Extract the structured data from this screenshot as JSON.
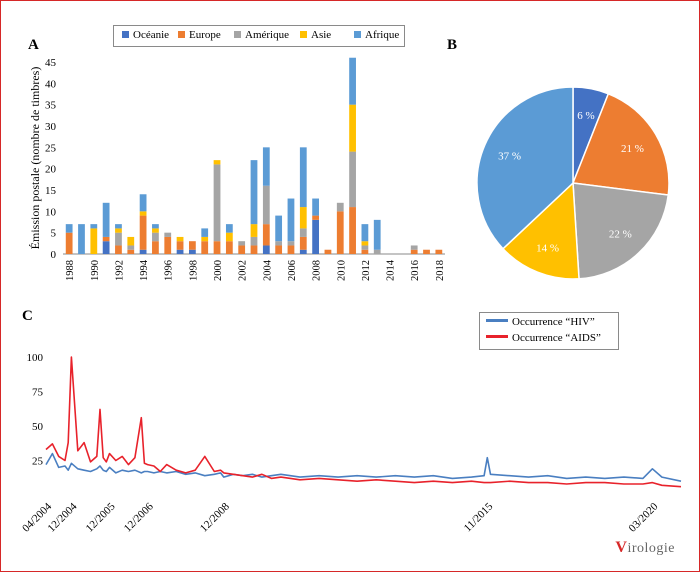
{
  "panels": {
    "a": "A",
    "b": "B",
    "c": "C"
  },
  "logo": {
    "v": "V",
    "rest": "irologie"
  },
  "colors": {
    "oceanie": "#4472c4",
    "europe": "#ed7d31",
    "amerique": "#a5a5a5",
    "asie": "#ffc000",
    "afrique": "#5b9bd5",
    "hiv": "#4a7fc1",
    "aids": "#e8222b",
    "frame": "#d62828"
  },
  "chart_data": [
    {
      "type": "bar",
      "stacked": true,
      "title": "",
      "ylabel": "Émission postale (nombre de timbres)",
      "xlabel": "",
      "ylim": [
        0,
        45
      ],
      "yticks": [
        "0",
        "5",
        "10",
        "15",
        "20",
        "25",
        "30",
        "35",
        "40",
        "45"
      ],
      "xtick_labels": [
        "1988",
        "1990",
        "1992",
        "1994",
        "1996",
        "1998",
        "2000",
        "2002",
        "2004",
        "2006",
        "2008",
        "2010",
        "2012",
        "2014",
        "2016",
        "2018"
      ],
      "categories": [
        "1988",
        "1989",
        "1990",
        "1991",
        "1992",
        "1993",
        "1994",
        "1995",
        "1996",
        "1997",
        "1998",
        "1999",
        "2000",
        "2001",
        "2002",
        "2003",
        "2004",
        "2005",
        "2006",
        "2007",
        "2008",
        "2009",
        "2010",
        "2011",
        "2012",
        "2013",
        "2014",
        "2015",
        "2016",
        "2017",
        "2018"
      ],
      "legend_position": "top",
      "grid": false,
      "series": [
        {
          "name": "Océanie",
          "values": [
            0,
            0,
            0,
            3,
            0,
            0,
            1,
            0,
            0,
            1,
            1,
            0,
            0,
            0,
            0,
            0,
            2,
            0,
            0,
            1,
            8,
            0,
            0,
            0,
            0,
            0,
            0,
            0,
            0,
            0,
            0
          ]
        },
        {
          "name": "Europe",
          "values": [
            5,
            0,
            0,
            1,
            2,
            1,
            8,
            3,
            4,
            2,
            2,
            3,
            3,
            3,
            2,
            2,
            5,
            2,
            2,
            3,
            1,
            1,
            10,
            11,
            1,
            0,
            0,
            0,
            1,
            1,
            1
          ]
        },
        {
          "name": "Amérique",
          "values": [
            0,
            0,
            0,
            0,
            3,
            1,
            0,
            2,
            1,
            0,
            0,
            0,
            18,
            0,
            1,
            2,
            9,
            1,
            1,
            2,
            0,
            0,
            2,
            13,
            1,
            1,
            0,
            0,
            1,
            0,
            0
          ]
        },
        {
          "name": "Asie",
          "values": [
            0,
            0,
            6,
            0,
            1,
            2,
            1,
            1,
            0,
            1,
            0,
            1,
            1,
            2,
            0,
            3,
            0,
            0,
            0,
            5,
            0,
            0,
            0,
            11,
            1,
            0,
            0,
            0,
            0,
            0,
            0
          ]
        },
        {
          "name": "Afrique",
          "values": [
            2,
            7,
            1,
            8,
            1,
            0,
            4,
            1,
            0,
            0,
            0,
            2,
            0,
            2,
            0,
            15,
            9,
            6,
            10,
            14,
            4,
            0,
            0,
            11,
            4,
            7,
            0,
            0,
            0,
            0,
            0
          ]
        }
      ]
    },
    {
      "type": "pie",
      "labels": [
        "Océanie",
        "Europe",
        "Amérique",
        "Asie",
        "Afrique"
      ],
      "values": [
        6,
        21,
        22,
        14,
        37
      ],
      "value_labels": [
        "6 %",
        "21 %",
        "22 %",
        "14 %",
        "37 %"
      ]
    },
    {
      "type": "line",
      "ylim": [
        0,
        100
      ],
      "yticks": [
        "25",
        "50",
        "75",
        "100"
      ],
      "xtick_labels": [
        "04/2004",
        "12/2004",
        "12/2005",
        "12/2006",
        "12/2008",
        "11/2015",
        "03/2020"
      ],
      "legend_position": "top-right",
      "grid": false,
      "x": [
        "2004-04",
        "2004-06",
        "2004-08",
        "2004-10",
        "2004-11",
        "2004-12",
        "2005-02",
        "2005-04",
        "2005-06",
        "2005-08",
        "2005-09",
        "2005-10",
        "2005-11",
        "2005-12",
        "2006-02",
        "2006-04",
        "2006-06",
        "2006-08",
        "2006-10",
        "2006-11",
        "2006-12",
        "2007-02",
        "2007-04",
        "2007-06",
        "2007-09",
        "2007-12",
        "2008-03",
        "2008-06",
        "2008-09",
        "2008-11",
        "2008-12",
        "2009-03",
        "2009-06",
        "2009-09",
        "2009-12",
        "2010-03",
        "2010-06",
        "2010-09",
        "2010-12",
        "2011-06",
        "2011-12",
        "2012-06",
        "2012-12",
        "2013-06",
        "2013-12",
        "2014-06",
        "2014-12",
        "2015-06",
        "2015-10",
        "2015-11",
        "2015-12",
        "2016-06",
        "2016-12",
        "2017-06",
        "2017-12",
        "2018-06",
        "2018-12",
        "2019-06",
        "2019-12",
        "2020-03",
        "2020-06",
        "2020-12"
      ],
      "series": [
        {
          "name": "Occurrence “HIV”",
          "values": [
            22,
            30,
            20,
            21,
            18,
            23,
            19,
            18,
            17,
            19,
            21,
            18,
            17,
            20,
            16,
            18,
            17,
            18,
            16,
            17,
            17,
            16,
            17,
            16,
            17,
            15,
            16,
            14,
            15,
            16,
            13,
            15,
            14,
            15,
            13,
            14,
            15,
            14,
            13,
            14,
            13,
            14,
            13,
            14,
            13,
            14,
            12,
            13,
            14,
            27,
            15,
            14,
            13,
            14,
            12,
            13,
            12,
            13,
            12,
            19,
            13,
            10
          ]
        },
        {
          "name": "Occurrence “AIDS”",
          "values": [
            33,
            37,
            28,
            25,
            38,
            100,
            32,
            38,
            24,
            28,
            62,
            27,
            24,
            30,
            25,
            28,
            22,
            27,
            56,
            23,
            22,
            21,
            17,
            22,
            18,
            16,
            18,
            28,
            17,
            18,
            16,
            15,
            14,
            13,
            15,
            12,
            13,
            12,
            11,
            12,
            11,
            10,
            11,
            10,
            9,
            10,
            9,
            10,
            9,
            9,
            9,
            10,
            9,
            9,
            8,
            9,
            9,
            8,
            8,
            9,
            7,
            6
          ]
        }
      ]
    }
  ]
}
